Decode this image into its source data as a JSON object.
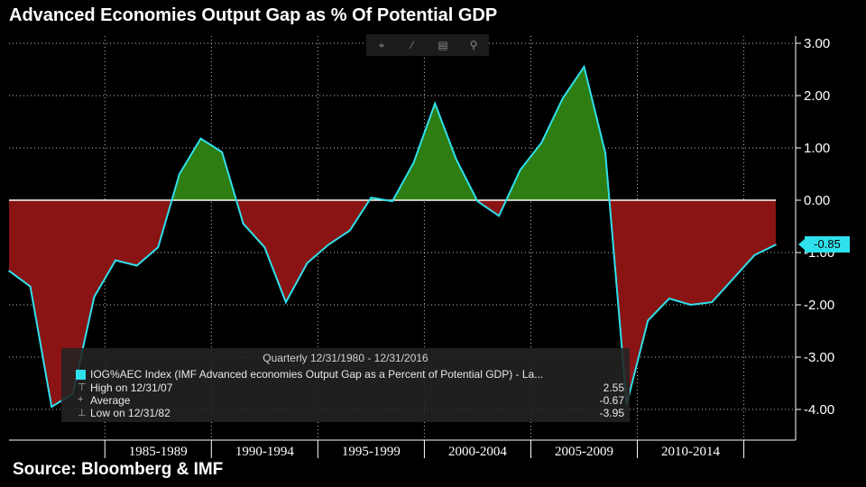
{
  "title": "Advanced Economies Output Gap as % Of Potential GDP",
  "source": "Source: Bloomberg & IMF",
  "toolbar": {
    "icons": [
      "crosshair-icon",
      "draw-line-icon",
      "table-icon",
      "zoom-icon"
    ]
  },
  "legend": {
    "header": "Quarterly 12/31/1980 - 12/31/2016",
    "series_label": "IOG%AEC Index (IMF Advanced economies Output Gap as a Percent of Potential GDP) - La...",
    "high_label": "High on 12/31/07",
    "high_value": "2.55",
    "avg_label": "Average",
    "avg_value": "-0.67",
    "low_label": "Low on 12/31/82",
    "low_value": "-3.95"
  },
  "last_value_badge": "-0.85",
  "colors": {
    "line": "#2fe1ec",
    "positive_fill": "#2e7d12",
    "negative_fill": "#8a1414",
    "zero_line": "#ffffff",
    "grid": "#ffffff",
    "background": "#000000"
  },
  "chart_data": {
    "type": "area",
    "title": "Advanced Economies Output Gap as % Of Potential GDP",
    "x": [
      1980,
      1981,
      1982,
      1983,
      1984,
      1985,
      1986,
      1987,
      1988,
      1989,
      1990,
      1991,
      1992,
      1993,
      1994,
      1995,
      1996,
      1997,
      1998,
      1999,
      2000,
      2001,
      2002,
      2003,
      2004,
      2005,
      2006,
      2007,
      2008,
      2009,
      2010,
      2011,
      2012,
      2013,
      2014,
      2015,
      2016
    ],
    "series": [
      {
        "values": [
          -1.35,
          -1.65,
          -3.95,
          -3.7,
          -1.85,
          -1.15,
          -1.25,
          -0.9,
          0.5,
          1.18,
          0.92,
          -0.45,
          -0.9,
          -1.95,
          -1.2,
          -0.85,
          -0.58,
          0.05,
          -0.02,
          0.72,
          1.85,
          0.78,
          -0.02,
          -0.3,
          0.58,
          1.1,
          1.95,
          2.55,
          0.9,
          -3.9,
          -2.3,
          -1.88,
          -2.0,
          -1.95,
          -1.5,
          -1.05,
          -0.85
        ]
      }
    ],
    "x_tick_labels": [
      "1985-1989",
      "1990-1994",
      "1995-1999",
      "2000-2004",
      "2005-2009",
      "2010-2014"
    ],
    "y_tick_labels": [
      "3.00",
      "2.00",
      "1.00",
      "0.00",
      "-1.00",
      "-2.00",
      "-3.00",
      "-4.00"
    ],
    "ylim": [
      -4.6,
      3.2
    ],
    "grid": true,
    "legend_position": "bottom-left"
  }
}
